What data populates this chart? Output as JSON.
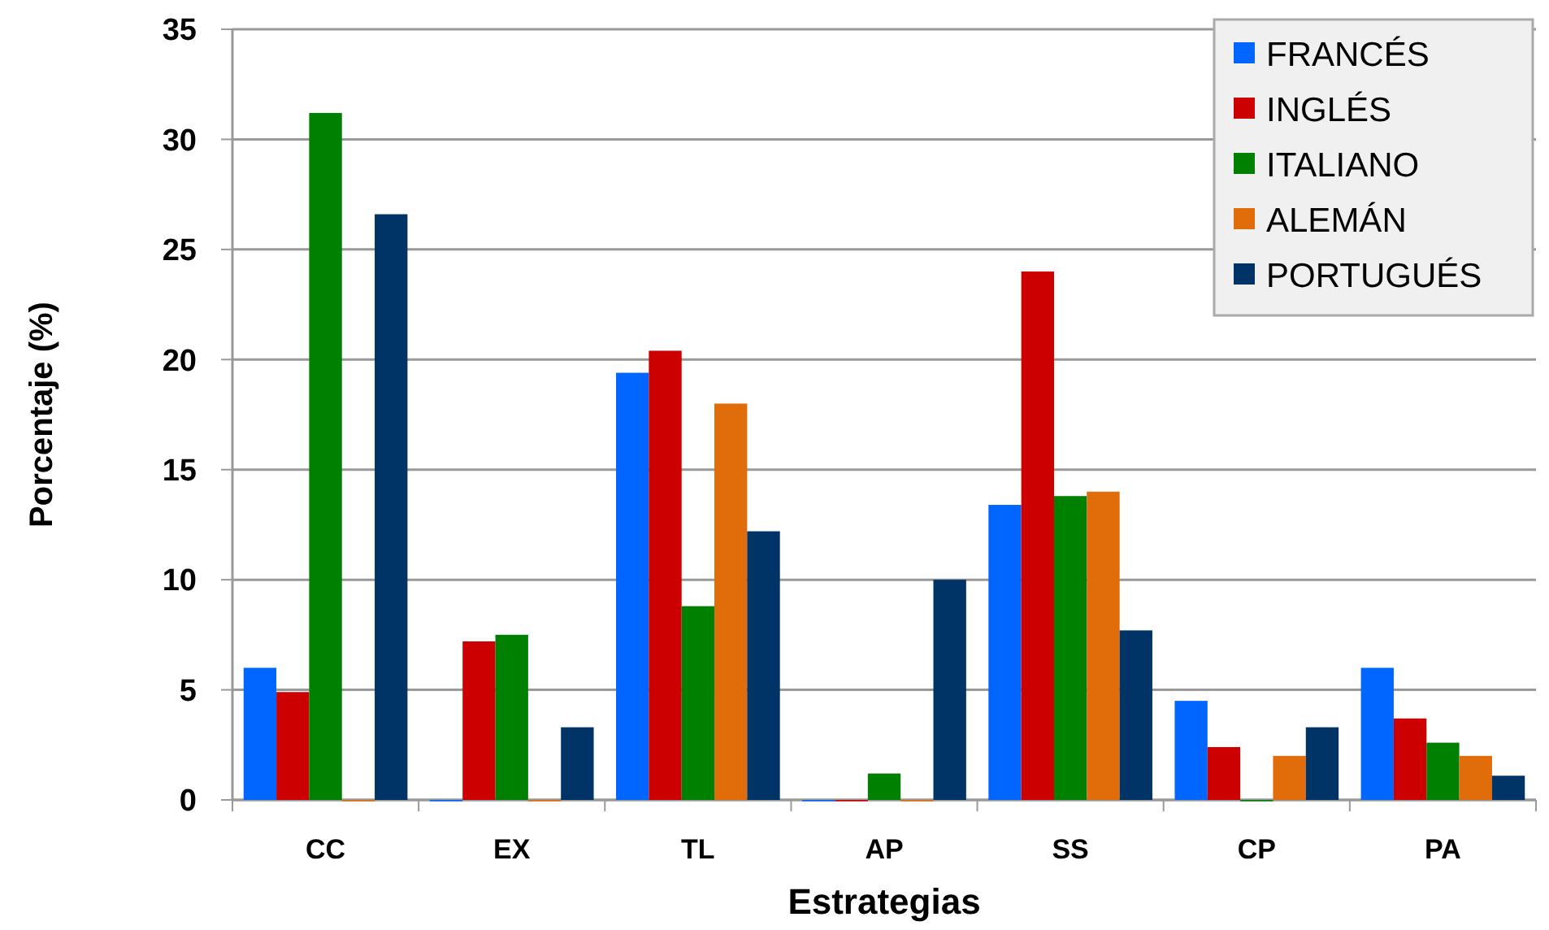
{
  "chart_data": {
    "type": "bar",
    "xlabel": "Estrategias",
    "ylabel": "Porcentaje (%)",
    "categories": [
      "CC",
      "EX",
      "TL",
      "AP",
      "SS",
      "CP",
      "PA"
    ],
    "series": [
      {
        "name": "FRANCÉS",
        "color": "#0066ff",
        "values": [
          6,
          0,
          19.4,
          0,
          13.4,
          4.5,
          6
        ]
      },
      {
        "name": "INGLÉS",
        "color": "#cc0000",
        "values": [
          4.9,
          7.2,
          20.4,
          0,
          24,
          2.4,
          3.7
        ]
      },
      {
        "name": "ITALIANO",
        "color": "#008000",
        "values": [
          31.2,
          7.5,
          8.8,
          1.2,
          13.8,
          0,
          2.6
        ]
      },
      {
        "name": "ALEMÁN",
        "color": "#e06c0a",
        "values": [
          0,
          0,
          18,
          0,
          14,
          2,
          2
        ]
      },
      {
        "name": "PORTUGUÉS",
        "color": "#003366",
        "values": [
          26.6,
          3.3,
          12.2,
          10,
          7.7,
          3.3,
          1.1
        ]
      }
    ],
    "ylim": [
      0,
      35
    ],
    "yticks": [
      0,
      5,
      10,
      15,
      20,
      25,
      30,
      35
    ],
    "grid": "y",
    "legend": "top right"
  }
}
